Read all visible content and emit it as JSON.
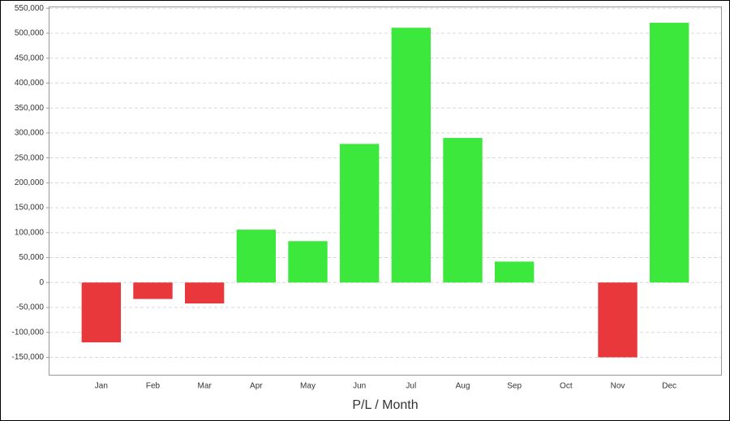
{
  "chart_data": {
    "type": "bar",
    "x_label": "P/L / Month",
    "categories": [
      "Jan",
      "Feb",
      "Mar",
      "Apr",
      "May",
      "Jun",
      "Jul",
      "Aug",
      "Sep",
      "Oct",
      "Nov",
      "Dec"
    ],
    "values": [
      -120000,
      -33000,
      -42000,
      106000,
      83000,
      278000,
      511000,
      290000,
      42000,
      0,
      -150000,
      521000
    ],
    "positive_color": "#3de83d",
    "negative_color": "#e8383c",
    "ylim": [
      -185000,
      552000
    ],
    "yticks": [
      {
        "value": -150000,
        "label": "-150,000"
      },
      {
        "value": -100000,
        "label": "-100,000"
      },
      {
        "value": -50000,
        "label": "-50,000"
      },
      0,
      {
        "value": 50000,
        "label": "50,000"
      },
      {
        "value": 100000,
        "label": "100,000"
      },
      {
        "value": 150000,
        "label": "150,000"
      },
      {
        "value": 200000,
        "label": "200,000"
      },
      {
        "value": 250000,
        "label": "250,000"
      },
      {
        "value": 300000,
        "label": "300,000"
      },
      {
        "value": 350000,
        "label": "350,000"
      },
      {
        "value": 400000,
        "label": "400,000"
      },
      {
        "value": 450000,
        "label": "450,000"
      },
      {
        "value": 500000,
        "label": "500,000"
      },
      {
        "value": 550000,
        "label": "550,000"
      }
    ],
    "grid": true
  }
}
